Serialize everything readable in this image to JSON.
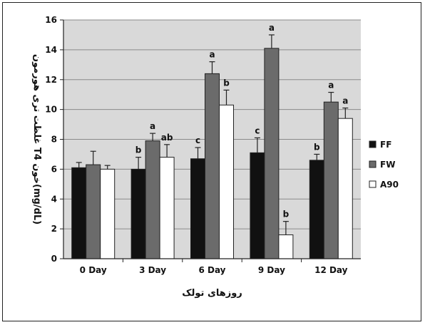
{
  "chart_data": {
    "type": "bar",
    "title": "",
    "xlabel": "روزهای تولک",
    "ylabel": "غلظت تری هورمون T4 خون(mg/dL)",
    "ylim": [
      0,
      16
    ],
    "yticks": [
      0,
      2,
      4,
      6,
      8,
      10,
      12,
      14,
      16
    ],
    "grid": true,
    "legend_position": "right",
    "categories": [
      "0 Day",
      "3 Day",
      "6 Day",
      "9 Day",
      "12 Day"
    ],
    "series": [
      {
        "name": "FF",
        "color": "#111111",
        "values": [
          6.1,
          6.0,
          6.7,
          7.1,
          6.6
        ],
        "errors": [
          0.35,
          0.8,
          0.75,
          1.0,
          0.4
        ],
        "labels": [
          "",
          "b",
          "c",
          "c",
          "b"
        ]
      },
      {
        "name": "FW",
        "color": "#6b6b6b",
        "values": [
          6.3,
          7.9,
          12.4,
          14.1,
          10.5
        ],
        "errors": [
          0.9,
          0.5,
          0.8,
          0.9,
          0.65
        ],
        "labels": [
          "",
          "a",
          "a",
          "a",
          "a"
        ]
      },
      {
        "name": "A90",
        "color": "#ffffff",
        "values": [
          6.0,
          6.8,
          10.3,
          1.6,
          9.4
        ],
        "errors": [
          0.25,
          0.85,
          1.0,
          0.9,
          0.7
        ],
        "labels": [
          "",
          "ab",
          "b",
          "b",
          "a"
        ]
      }
    ]
  }
}
